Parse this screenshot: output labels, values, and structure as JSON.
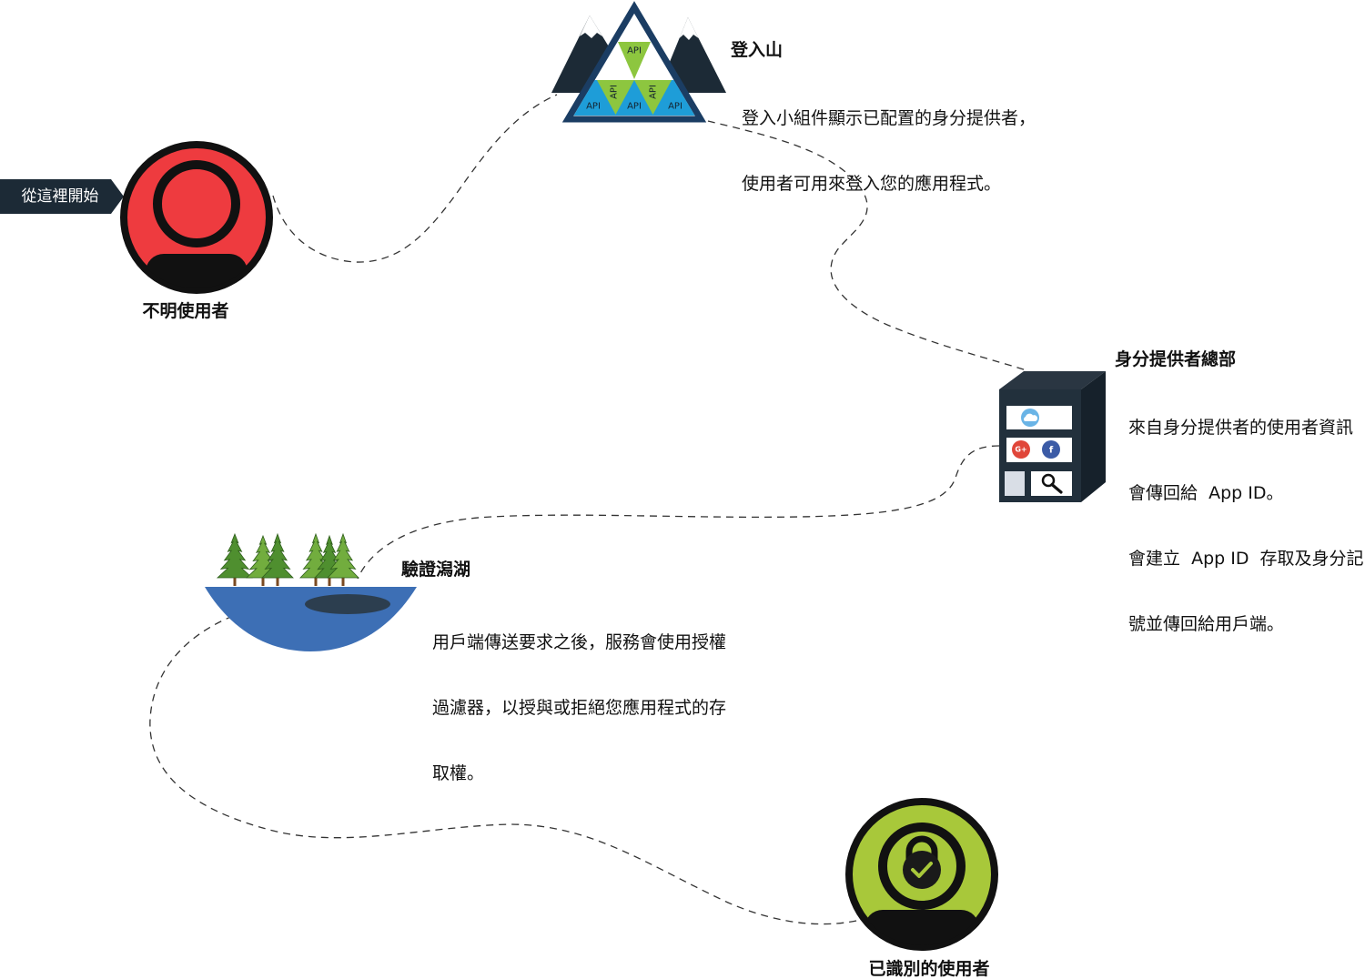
{
  "start_marker": {
    "label": "從這裡開始",
    "color": "#1c2a36"
  },
  "unknown_user": {
    "label": "不明使用者",
    "icon": "unknown-user-icon",
    "color": "#ee3b3f"
  },
  "login_mountain": {
    "title": "登入山",
    "description": [
      "登入小組件顯示已配置的身分提供者，",
      "使用者可用來登入您的應用程式。"
    ],
    "api_labels": [
      "API",
      "API",
      "API",
      "API",
      "API",
      "API"
    ],
    "colors": {
      "outline": "#1b3d63",
      "peaks": "#1c2a36",
      "api_green": "#8dc63f",
      "api_blue": "#1e9dd8"
    }
  },
  "identity_hq": {
    "title": "身分提供者總部",
    "description": [
      "來自身分提供者的使用者資訊",
      "會傳回給  App ID。",
      "會建立  App ID  存取及身分記",
      "號並傳回給用戶端。"
    ],
    "providers": [
      {
        "icon": "cloud-icon",
        "color": "#6ab4e6"
      },
      {
        "icon": "google-plus-icon",
        "logo_text": "G+",
        "color": "#e0463a"
      },
      {
        "icon": "facebook-icon",
        "logo_text": "f",
        "color": "#3b5ba6"
      },
      {
        "icon": "search-icon"
      }
    ]
  },
  "auth_lagoon": {
    "title": "驗證潟湖",
    "description": [
      "用戶端傳送要求之後，服務會使用授權",
      "過濾器，以授與或拒絕您應用程式的存",
      "取權。"
    ],
    "colors": {
      "water": "#3d6fb5",
      "tree_dark": "#4f8f2f",
      "tree_light": "#72ad3e"
    }
  },
  "identified_user": {
    "label": "已識別的使用者",
    "icon": "identified-user-lock-icon",
    "color": "#a8c83a"
  },
  "path_color": "#333333"
}
